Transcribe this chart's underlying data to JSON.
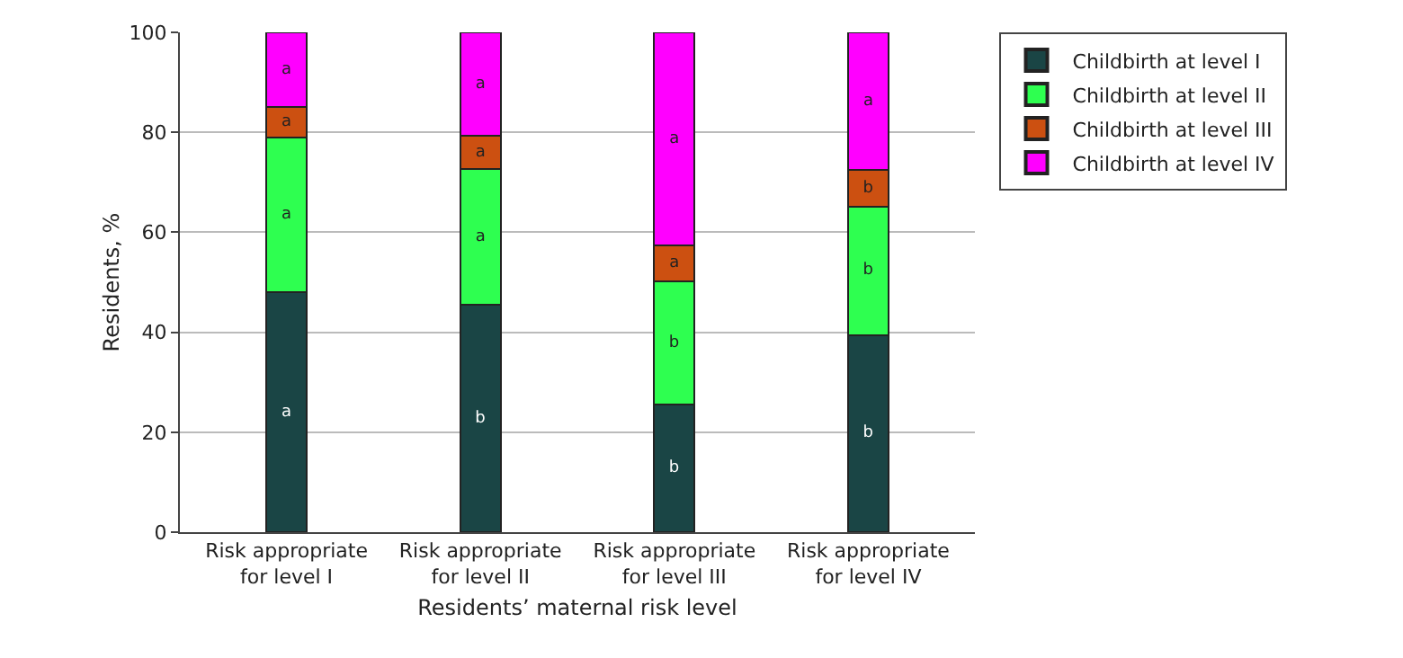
{
  "chart_data": {
    "type": "bar",
    "stacked": true,
    "xlabel": "Residents’ maternal risk level",
    "ylabel": "Residents, %",
    "categories": [
      "Risk appropriate\nfor level I",
      "Risk appropriate\nfor level II",
      "Risk appropriate\nfor level III",
      "Risk appropriate\nfor level IV"
    ],
    "series": [
      {
        "name": "Childbirth at level I",
        "color": "#1a4545",
        "values": [
          48.0,
          45.5,
          25.5,
          39.4
        ],
        "value_labels": [
          "a",
          "b",
          "b",
          "b"
        ]
      },
      {
        "name": "Childbirth at level II",
        "color": "#2eff50",
        "values": [
          30.9,
          27.1,
          24.7,
          25.7
        ],
        "value_labels": [
          "a",
          "a",
          "b",
          "b"
        ]
      },
      {
        "name": "Childbirth at level III",
        "color": "#cc5011",
        "values": [
          6.1,
          6.7,
          7.1,
          7.3
        ],
        "value_labels": [
          "a",
          "a",
          "a",
          "b"
        ]
      },
      {
        "name": "Childbirth at level IV",
        "color": "#ff00ff",
        "values": [
          15.0,
          20.7,
          42.7,
          27.6
        ],
        "value_labels": [
          "a",
          "a",
          "a",
          "a"
        ]
      }
    ],
    "ylim": [
      0,
      100
    ],
    "yticks": [
      0,
      20,
      40,
      60,
      80,
      100
    ],
    "grid": "y",
    "legend": "top right"
  }
}
